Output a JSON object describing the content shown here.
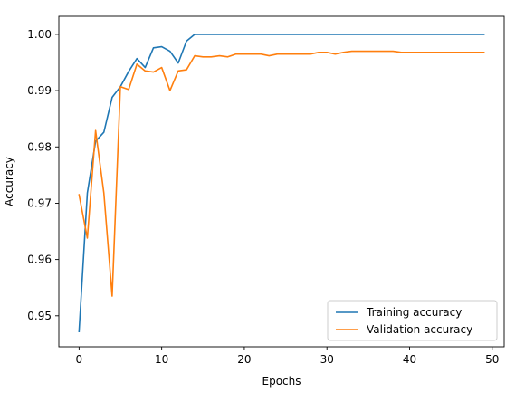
{
  "chart_data": {
    "type": "line",
    "xlabel": "Epochs",
    "ylabel": "Accuracy",
    "xlim": [
      -2.45,
      51.45
    ],
    "ylim": [
      0.9445,
      1.0032
    ],
    "xticks": [
      0,
      10,
      20,
      30,
      40,
      50
    ],
    "yticks": [
      0.95,
      0.96,
      0.97,
      0.98,
      0.99,
      1.0
    ],
    "xtick_labels": [
      "0",
      "10",
      "20",
      "30",
      "40",
      "50"
    ],
    "ytick_labels": [
      "0.95",
      "0.96",
      "0.97",
      "0.98",
      "0.99",
      "1.00"
    ],
    "grid": false,
    "legend_position": "lower-right",
    "x": [
      0,
      1,
      2,
      3,
      4,
      5,
      6,
      7,
      8,
      9,
      10,
      11,
      12,
      13,
      14,
      15,
      16,
      17,
      18,
      19,
      20,
      21,
      22,
      23,
      24,
      25,
      26,
      27,
      28,
      29,
      30,
      31,
      32,
      33,
      34,
      35,
      36,
      37,
      38,
      39,
      40,
      41,
      42,
      43,
      44,
      45,
      46,
      47,
      48,
      49
    ],
    "series": [
      {
        "name": "Training accuracy",
        "color": "#1f77b4",
        "values": [
          0.9472,
          0.9718,
          0.981,
          0.9826,
          0.9888,
          0.9907,
          0.9934,
          0.9957,
          0.9941,
          0.9976,
          0.9978,
          0.997,
          0.9949,
          0.9988,
          1.0,
          1.0,
          1.0,
          1.0,
          1.0,
          1.0,
          1.0,
          1.0,
          1.0,
          1.0,
          1.0,
          1.0,
          1.0,
          1.0,
          1.0,
          1.0,
          1.0,
          1.0,
          1.0,
          1.0,
          1.0,
          1.0,
          1.0,
          1.0,
          1.0,
          1.0,
          1.0,
          1.0,
          1.0,
          1.0,
          1.0,
          1.0,
          1.0,
          1.0,
          1.0,
          1.0
        ]
      },
      {
        "name": "Validation accuracy",
        "color": "#ff7f0e",
        "values": [
          0.9715,
          0.9638,
          0.9829,
          0.9718,
          0.9535,
          0.9907,
          0.9902,
          0.9947,
          0.9935,
          0.9933,
          0.9941,
          0.99,
          0.9935,
          0.9937,
          0.9962,
          0.996,
          0.996,
          0.9962,
          0.996,
          0.9965,
          0.9965,
          0.9965,
          0.9965,
          0.9962,
          0.9965,
          0.9965,
          0.9965,
          0.9965,
          0.9965,
          0.9968,
          0.9968,
          0.9965,
          0.9968,
          0.997,
          0.997,
          0.997,
          0.997,
          0.997,
          0.997,
          0.9968,
          0.9968,
          0.9968,
          0.9968,
          0.9968,
          0.9968,
          0.9968,
          0.9968,
          0.9968,
          0.9968,
          0.9968
        ]
      }
    ]
  }
}
